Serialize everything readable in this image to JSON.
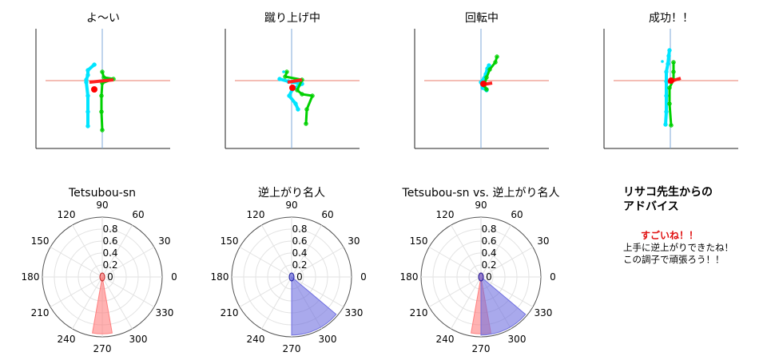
{
  "chart_data": [
    {
      "type": "scatter",
      "title": "よ〜い",
      "xlabel": "",
      "ylabel": "",
      "grid": false,
      "series": []
    },
    {
      "type": "scatter",
      "title": "蹴り上げ中",
      "xlabel": "",
      "ylabel": "",
      "grid": false,
      "series": []
    },
    {
      "type": "scatter",
      "title": "回転中",
      "xlabel": "",
      "ylabel": "",
      "grid": false,
      "series": []
    },
    {
      "type": "scatter",
      "title": "成功！！",
      "xlabel": "",
      "ylabel": "",
      "grid": false,
      "series": []
    },
    {
      "type": "polar-histogram",
      "title": "Tetsubou-sn",
      "theta_ticks": [
        "0",
        "30",
        "60",
        "90",
        "120",
        "150",
        "180",
        "210",
        "240",
        "270",
        "300",
        "330"
      ],
      "r_ticks": [
        "0",
        "0.2",
        "0.4",
        "0.6",
        "0.8"
      ],
      "rlim": [
        0,
        1
      ],
      "grid": true,
      "series": [
        {
          "color": "#ff7f7f",
          "bins": [
            {
              "theta_start": 260,
              "theta_end": 280,
              "r": 0.95
            }
          ]
        }
      ]
    },
    {
      "type": "polar-histogram",
      "title": "逆上がり名人",
      "theta_ticks": [
        "0",
        "30",
        "60",
        "90",
        "120",
        "150",
        "180",
        "210",
        "240",
        "270",
        "300",
        "330"
      ],
      "r_ticks": [
        "0",
        "0.2",
        "0.4",
        "0.6",
        "0.8"
      ],
      "rlim": [
        0,
        1
      ],
      "grid": true,
      "series": [
        {
          "color": "#6f6fe0",
          "bins": [
            {
              "theta_start": 270,
              "theta_end": 320,
              "r": 0.97
            }
          ]
        }
      ]
    },
    {
      "type": "polar-histogram",
      "title": "Tetsubou-sn vs. 逆上がり名人",
      "theta_ticks": [
        "0",
        "30",
        "60",
        "90",
        "120",
        "150",
        "180",
        "210",
        "240",
        "270",
        "300",
        "330"
      ],
      "r_ticks": [
        "0",
        "0.2",
        "0.4",
        "0.6",
        "0.8"
      ],
      "rlim": [
        0,
        1
      ],
      "grid": true,
      "series": [
        {
          "color": "#ff7f7f",
          "bins": [
            {
              "theta_start": 260,
              "theta_end": 280,
              "r": 0.95
            }
          ]
        },
        {
          "color": "#6f6fe0",
          "bins": [
            {
              "theta_start": 270,
              "theta_end": 320,
              "r": 0.97
            }
          ]
        }
      ]
    }
  ],
  "advice": {
    "title": "リサコ先生からの\nアドバイス",
    "praise": "すごいね！！",
    "line1": "上手に逆上がりできたね！",
    "line2": "この調子で頑張ろう！！"
  },
  "colors": {
    "left_limb": "#00e5ff",
    "right_limb": "#00d000",
    "body_segment": "#ff2020",
    "center_of_mass": "#ff0000",
    "vertical_axis": "#7fa8d8",
    "horizontal_axis": "#e87b6b"
  }
}
